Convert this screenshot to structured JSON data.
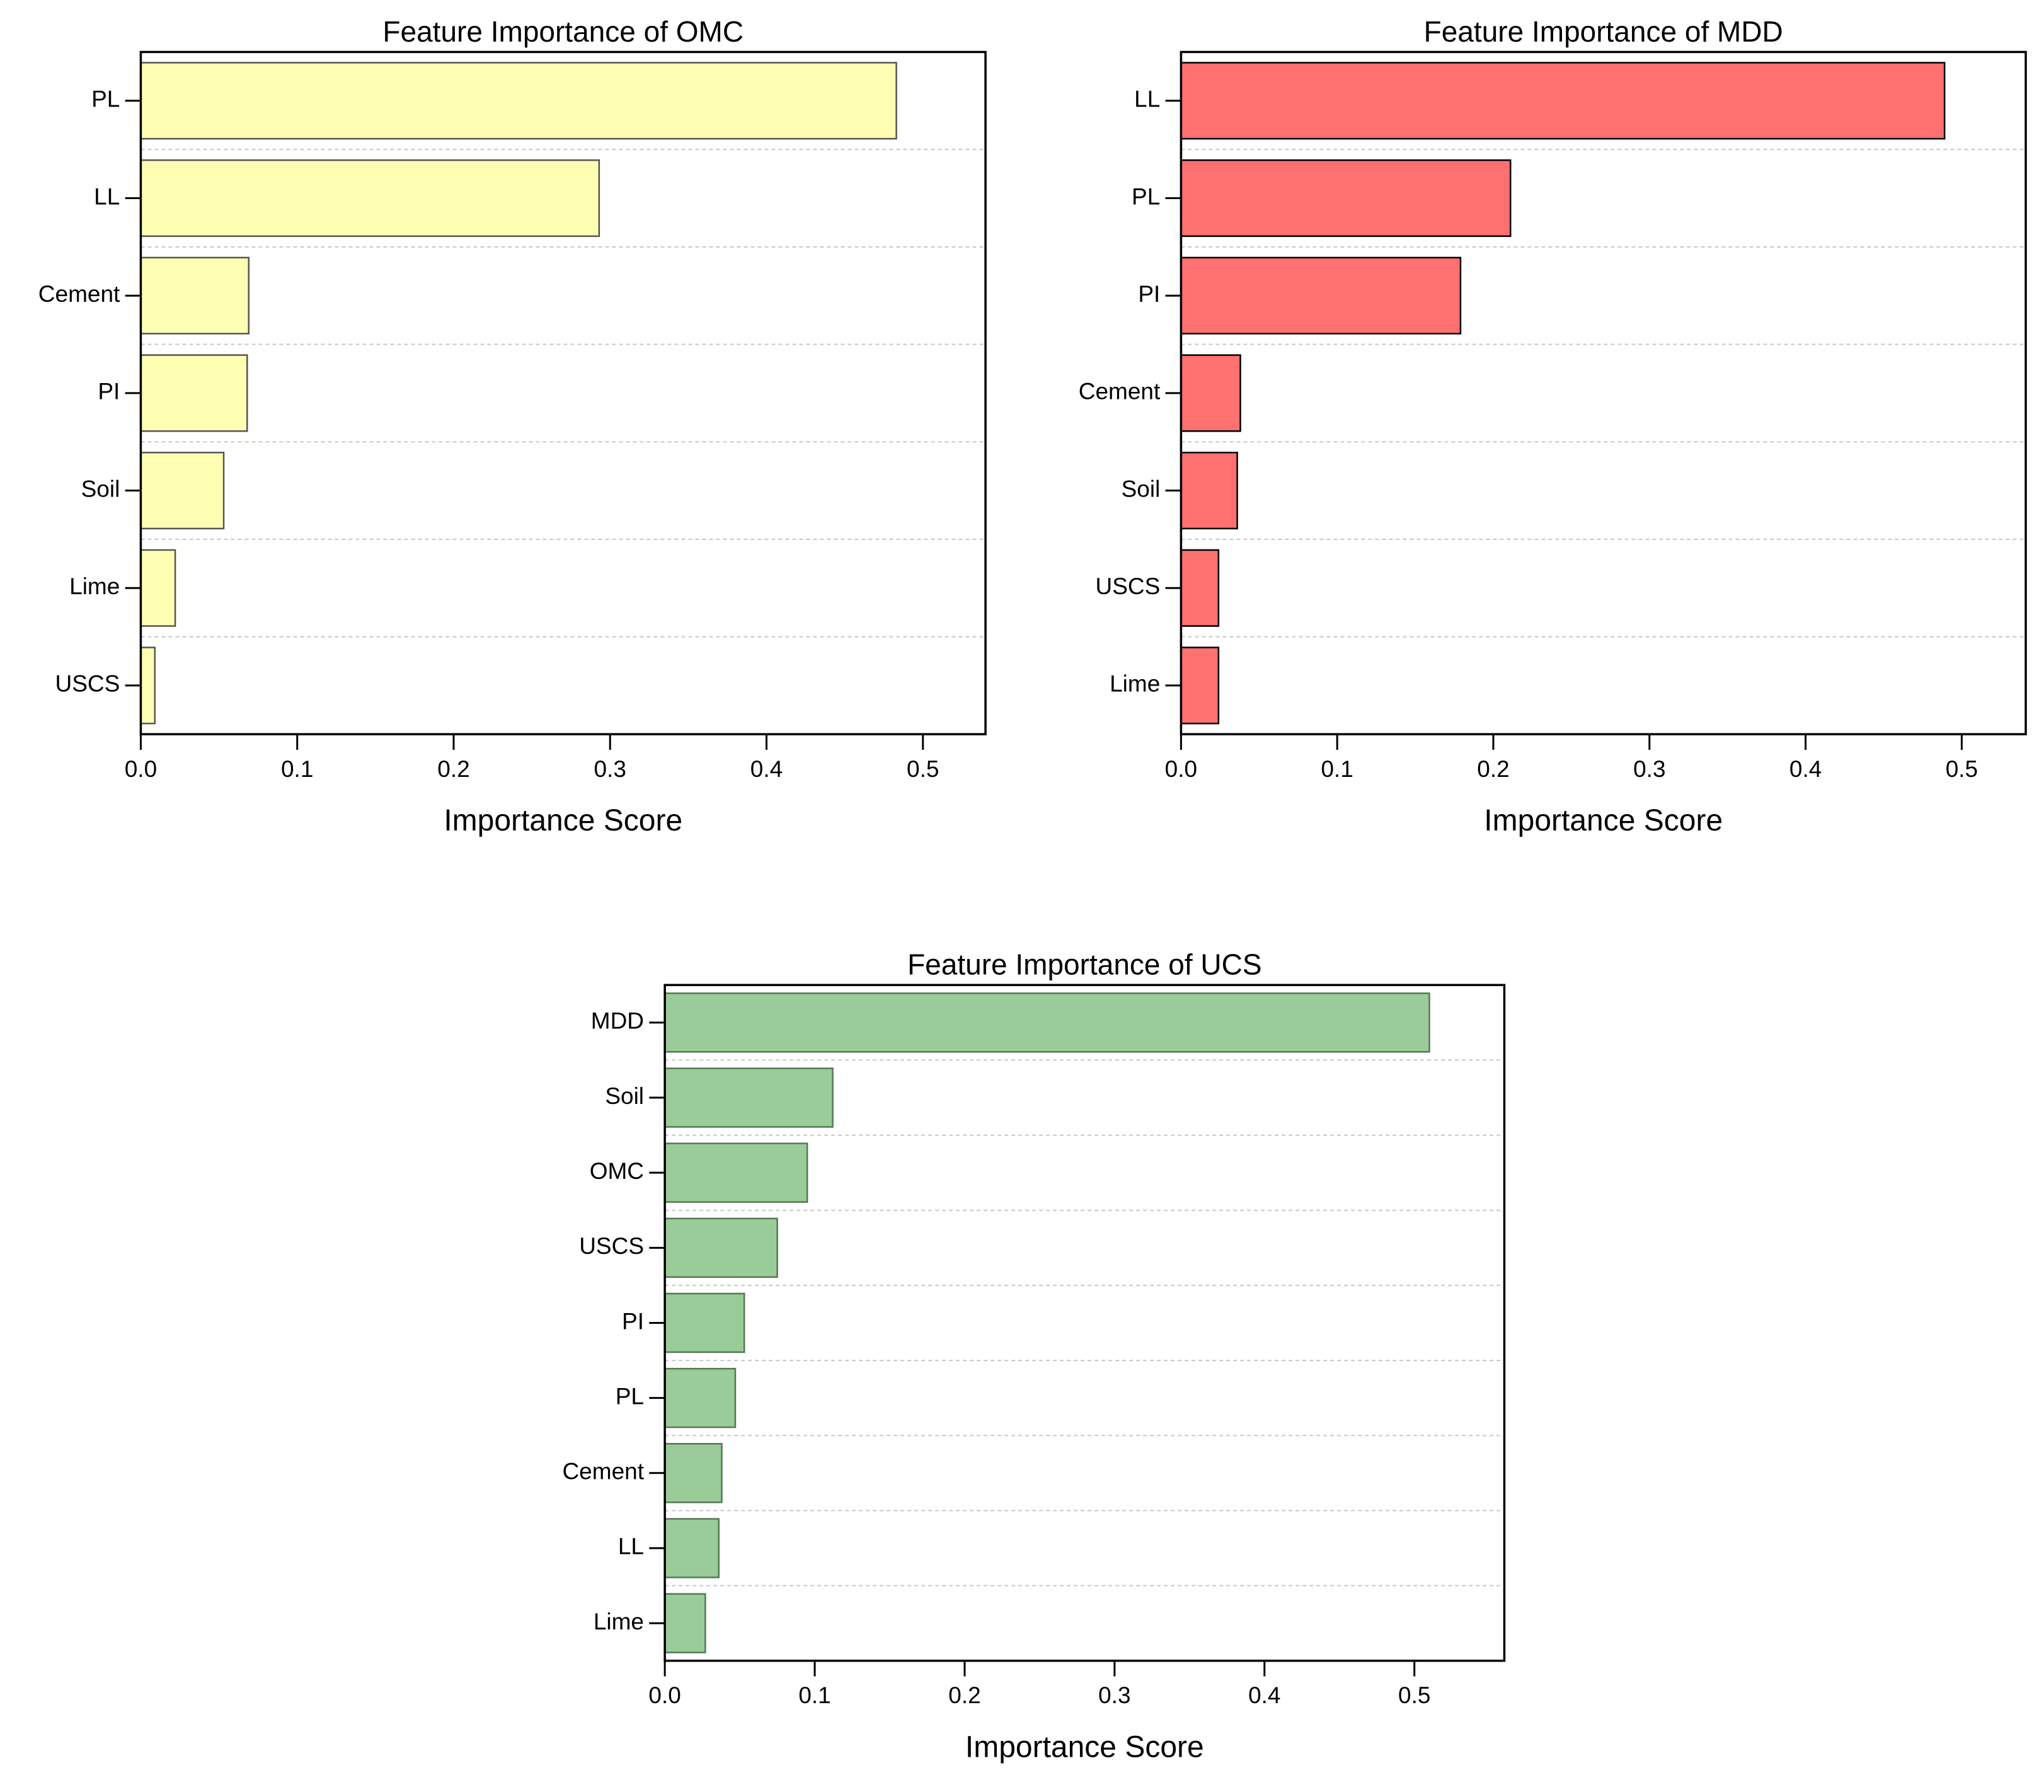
{
  "chart_data": [
    {
      "type": "barh",
      "title": "Feature Importance of OMC",
      "xlabel": "Importance Score",
      "categories": [
        "PL",
        "LL",
        "Cement",
        "PI",
        "Soil",
        "Lime",
        "USCS"
      ],
      "values": [
        0.483,
        0.293,
        0.069,
        0.068,
        0.053,
        0.022,
        0.009
      ],
      "color": "#ffffb3",
      "edgecolor": "#555555",
      "xlim": [
        0,
        0.54
      ],
      "xticks": [
        {
          "value": 0,
          "label": "0.0"
        },
        0.1,
        0.2,
        0.3,
        0.4,
        0.5
      ],
      "grid": true
    },
    {
      "type": "barh",
      "title": "Feature Importance of MDD",
      "xlabel": "Importance Score",
      "categories": [
        "LL",
        "PL",
        "PI",
        "Cement",
        "Soil",
        "USCS",
        "Lime"
      ],
      "values": [
        0.489,
        0.211,
        0.179,
        0.038,
        0.036,
        0.024,
        0.024
      ],
      "color": "#ff7070",
      "edgecolor": "#000000",
      "xlim": [
        0,
        0.541
      ],
      "xticks": [
        {
          "value": 0,
          "label": "0.0"
        },
        0.1,
        0.2,
        0.3,
        0.4,
        0.5
      ],
      "grid": true
    },
    {
      "type": "barh",
      "title": "Feature Importance of UCS",
      "xlabel": "Importance Score",
      "categories": [
        "MDD",
        "Soil",
        "OMC",
        "USCS",
        "PI",
        "PL",
        "Cement",
        "LL",
        "Lime"
      ],
      "values": [
        0.51,
        0.112,
        0.095,
        0.075,
        0.053,
        0.047,
        0.038,
        0.036,
        0.027
      ],
      "color": "#99cc99",
      "edgecolor": "#557755",
      "xlim": [
        0,
        0.56
      ],
      "xticks": [
        {
          "value": 0,
          "label": "0.0"
        },
        0.1,
        0.2,
        0.3,
        0.4,
        0.5
      ],
      "grid": true
    }
  ]
}
